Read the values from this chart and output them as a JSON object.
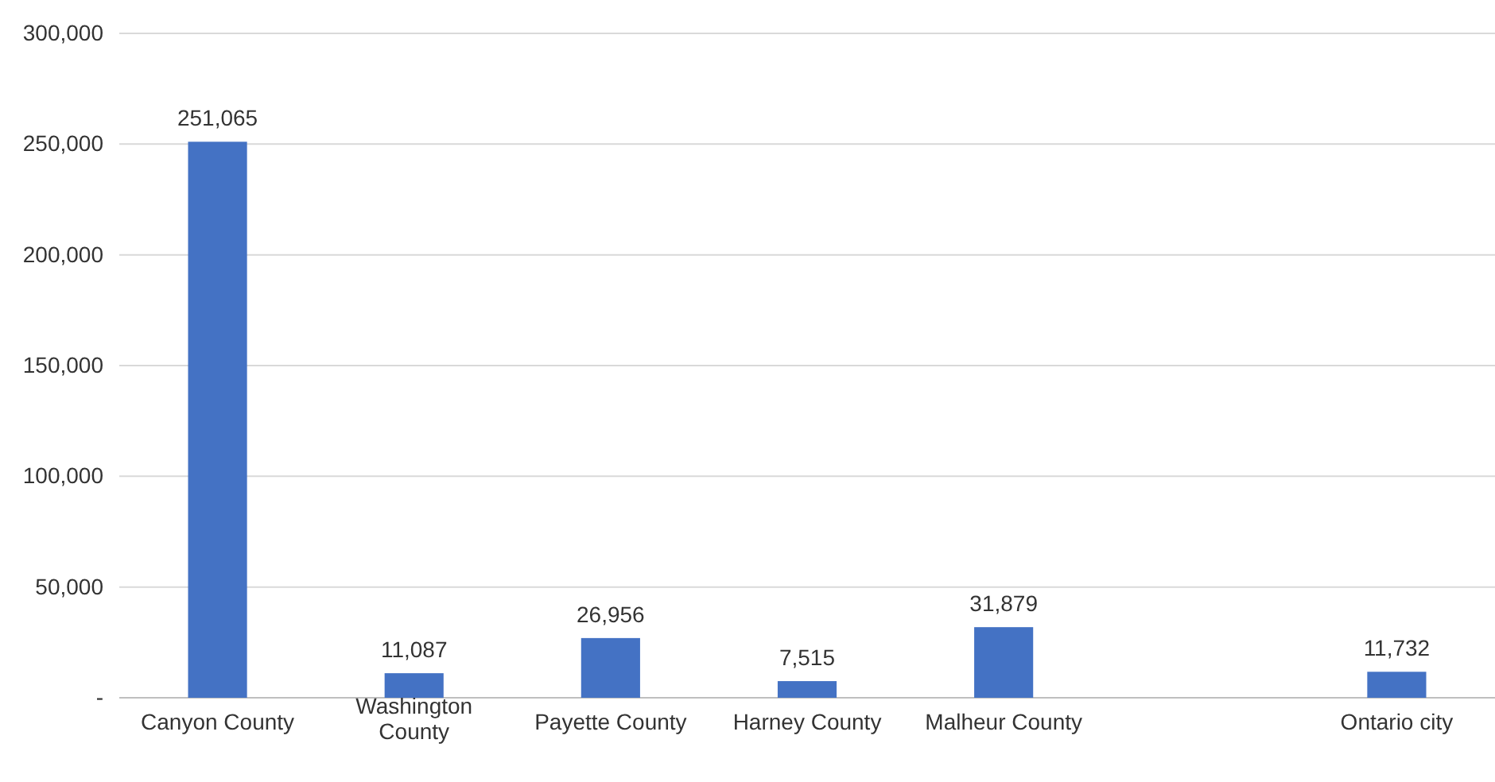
{
  "chart_data": {
    "type": "bar",
    "categories": [
      "Canyon County",
      "Washington County",
      "Payette County",
      "Harney County",
      "Malheur County",
      null,
      "Ontario city"
    ],
    "values": [
      251065,
      11087,
      26956,
      7515,
      31879,
      null,
      11732
    ],
    "color": "#4472c4",
    "ylim": [
      0,
      300000
    ],
    "yticks": [
      {
        "value": 0,
        "label": "-"
      },
      {
        "value": 50000,
        "label": "50,000"
      },
      {
        "value": 100000,
        "label": "100,000"
      },
      {
        "value": 150000,
        "label": "150,000"
      },
      {
        "value": 200000,
        "label": "200,000"
      },
      {
        "value": 250000,
        "label": "250,000"
      },
      {
        "value": 300000,
        "label": "300,000"
      }
    ],
    "grid": "y",
    "value_labels": [
      "251,065",
      "11,087",
      "26,956",
      "7,515",
      "31,879",
      null,
      "11,732"
    ]
  }
}
